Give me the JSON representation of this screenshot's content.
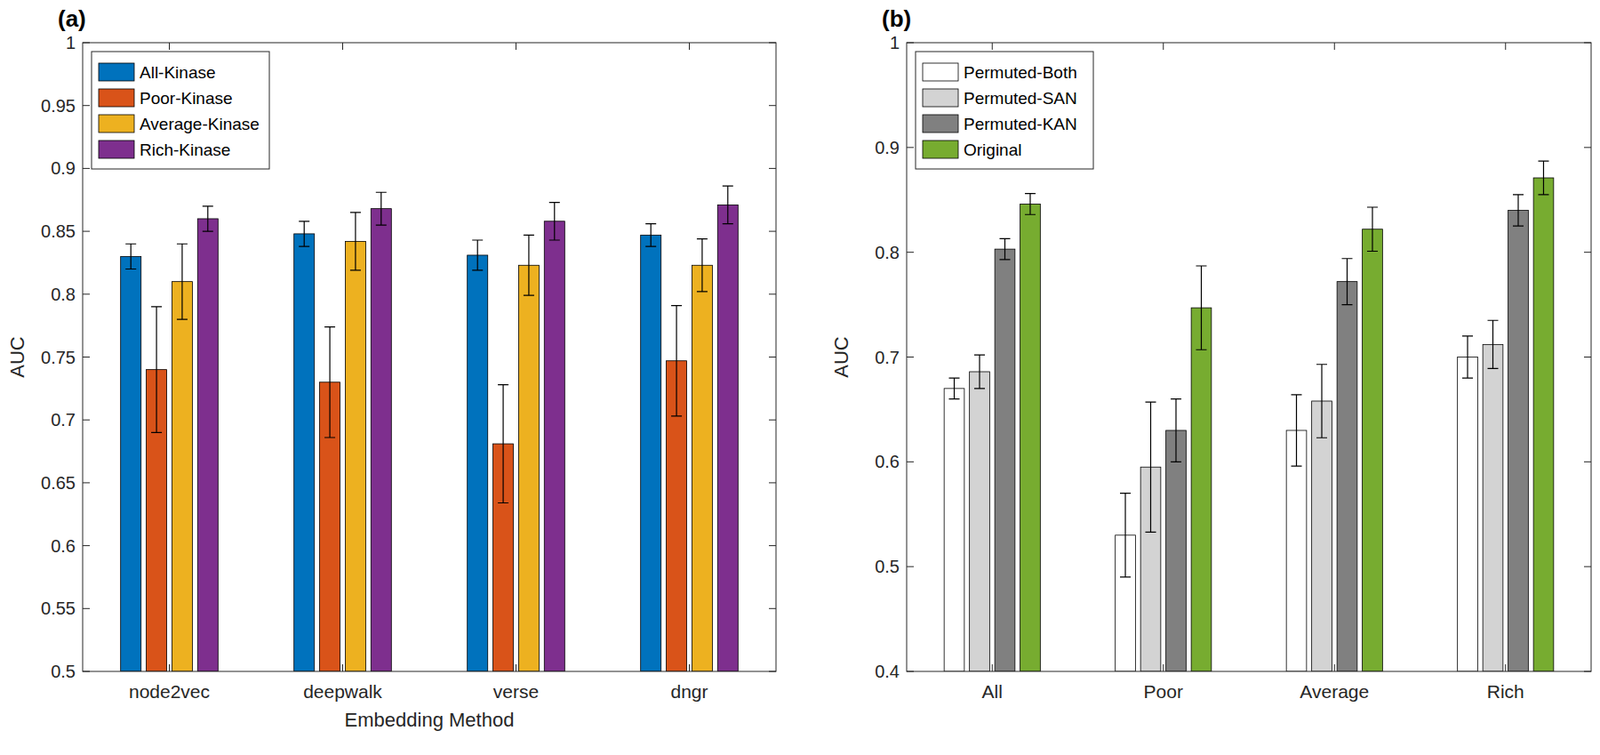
{
  "chart_data": [
    {
      "type": "bar",
      "title": "(a)",
      "x_label": "Embedding Method",
      "y_label": "AUC",
      "categories": [
        "node2vec",
        "deepwalk",
        "verse",
        "dngr"
      ],
      "ylim": [
        0.5,
        1
      ],
      "yticks": [
        0.5,
        0.55,
        0.6,
        0.65,
        0.7,
        0.75,
        0.8,
        0.85,
        0.9,
        0.95,
        1
      ],
      "grid": false,
      "legend": "upper-left",
      "series": [
        {
          "name": "All-Kinase",
          "color": "#0072BD",
          "values": [
            0.83,
            0.848,
            0.831,
            0.847
          ],
          "errors": [
            0.01,
            0.01,
            0.012,
            0.009
          ]
        },
        {
          "name": "Poor-Kinase",
          "color": "#D95319",
          "values": [
            0.74,
            0.73,
            0.681,
            0.747
          ],
          "errors": [
            0.05,
            0.044,
            0.047,
            0.044
          ]
        },
        {
          "name": "Average-Kinase",
          "color": "#EDB120",
          "values": [
            0.81,
            0.842,
            0.823,
            0.823
          ],
          "errors": [
            0.03,
            0.023,
            0.024,
            0.021
          ]
        },
        {
          "name": "Rich-Kinase",
          "color": "#7E2F8E",
          "values": [
            0.86,
            0.868,
            0.858,
            0.871
          ],
          "errors": [
            0.01,
            0.013,
            0.015,
            0.015
          ]
        }
      ]
    },
    {
      "type": "bar",
      "title": "(b)",
      "y_label": "AUC",
      "categories": [
        "All",
        "Poor",
        "Average",
        "Rich"
      ],
      "ylim": [
        0.4,
        1
      ],
      "yticks": [
        0.4,
        0.5,
        0.6,
        0.7,
        0.8,
        0.9,
        1
      ],
      "grid": false,
      "legend": "upper-left",
      "series": [
        {
          "name": "Permuted-Both",
          "color": "#ffffff",
          "values": [
            0.67,
            0.53,
            0.63,
            0.7
          ],
          "errors": [
            0.01,
            0.04,
            0.034,
            0.02
          ]
        },
        {
          "name": "Permuted-SAN",
          "color": "#d3d3d3",
          "values": [
            0.686,
            0.595,
            0.658,
            0.712
          ],
          "errors": [
            0.016,
            0.062,
            0.035,
            0.023
          ]
        },
        {
          "name": "Permuted-KAN",
          "color": "#808080",
          "values": [
            0.803,
            0.63,
            0.772,
            0.84
          ],
          "errors": [
            0.01,
            0.03,
            0.022,
            0.015
          ]
        },
        {
          "name": "Original",
          "color": "#77AC30",
          "values": [
            0.846,
            0.747,
            0.822,
            0.871
          ],
          "errors": [
            0.01,
            0.04,
            0.021,
            0.016
          ]
        }
      ]
    }
  ]
}
